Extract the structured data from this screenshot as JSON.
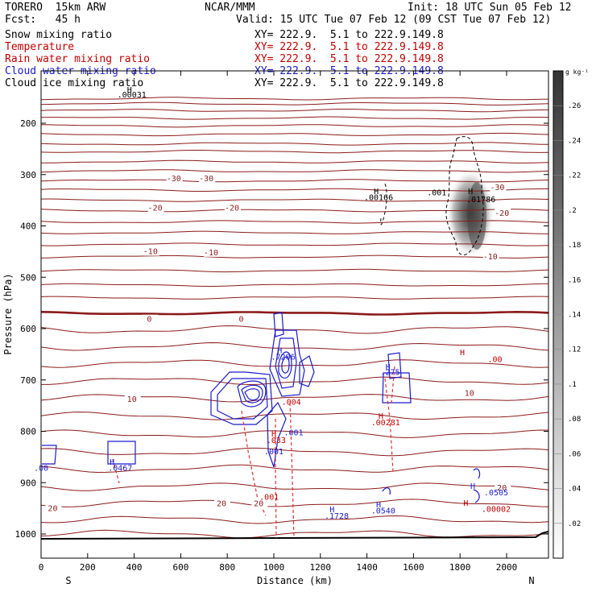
{
  "header": {
    "model": "TORERO  15km ARW",
    "center": "NCAR/MMM",
    "init": "Init: 18 UTC Sun 05 Feb 12",
    "fcst": "Fcst:   45 h",
    "valid": "Valid: 15 UTC Tue 07 Feb 12 (09 CST Tue 07 Feb 12)"
  },
  "fields": [
    {
      "label": "Snow mixing ratio",
      "color": "#000000",
      "xy": "XY= 222.9.  5.1 to 222.9.149.8"
    },
    {
      "label": "Temperature",
      "color": "#c00000",
      "xy": "XY= 222.9.  5.1 to 222.9.149.8"
    },
    {
      "label": "Rain water mixing ratio",
      "color": "#c00000",
      "xy": "XY= 222.9.  5.1 to 222.9.149.8"
    },
    {
      "label": "Cloud water mixing ratio",
      "color": "#1a1acc",
      "xy": "XY= 222.9.  5.1 to 222.9.149.8"
    },
    {
      "label": "Cloud ice mixing ratio",
      "color": "#000000",
      "xy": "XY= 222.9.  5.1 to 222.9.149.8"
    }
  ],
  "chart_data": {
    "type": "contour",
    "xlabel": "Distance (km)",
    "ylabel": "Pressure (hPa)",
    "xlim": [
      0,
      2180
    ],
    "ylim": [
      1050,
      140
    ],
    "xticks": [
      0,
      200,
      400,
      600,
      800,
      1000,
      1200,
      1400,
      1600,
      1800,
      2000
    ],
    "yticks": [
      200,
      300,
      400,
      500,
      600,
      700,
      800,
      900,
      1000
    ],
    "x_end_labels": {
      "left": "S",
      "right": "N"
    },
    "colorbar": {
      "unit": "g kg⁻¹",
      "range": [
        0,
        0.27
      ],
      "ticks": [
        ".02",
        ".04",
        ".06",
        ".08",
        ".1",
        ".12",
        ".14",
        ".16",
        ".18",
        ".2",
        ".22",
        ".24",
        ".26"
      ]
    },
    "temperature_contours": [
      {
        "p": 152,
        "label": ""
      },
      {
        "p": 162,
        "label": ""
      },
      {
        "p": 175,
        "label": ""
      },
      {
        "p": 190,
        "label": ""
      },
      {
        "p": 205,
        "label": ""
      },
      {
        "p": 222,
        "label": ""
      },
      {
        "p": 240,
        "label": ""
      },
      {
        "p": 255,
        "label": ""
      },
      {
        "p": 275,
        "label": ""
      },
      {
        "p": 293,
        "label": "-30"
      },
      {
        "p": 312,
        "label": ""
      },
      {
        "p": 330,
        "label": ""
      },
      {
        "p": 350,
        "label": "-20"
      },
      {
        "p": 370,
        "label": ""
      },
      {
        "p": 392,
        "label": ""
      },
      {
        "p": 413,
        "label": ""
      },
      {
        "p": 436,
        "label": "-10"
      },
      {
        "p": 460,
        "label": ""
      },
      {
        "p": 487,
        "label": ""
      },
      {
        "p": 515,
        "label": ""
      },
      {
        "p": 540,
        "label": ""
      },
      {
        "p": 570,
        "label": "0"
      },
      {
        "p": 602,
        "label": ""
      },
      {
        "p": 635,
        "label": ""
      },
      {
        "p": 668,
        "label": ""
      },
      {
        "p": 702,
        "label": ""
      },
      {
        "p": 735,
        "label": "10"
      },
      {
        "p": 770,
        "label": ""
      },
      {
        "p": 805,
        "label": ""
      },
      {
        "p": 840,
        "label": ""
      },
      {
        "p": 873,
        "label": ""
      },
      {
        "p": 908,
        "label": ""
      },
      {
        "p": 940,
        "label": "20"
      },
      {
        "p": 972,
        "label": ""
      },
      {
        "p": 1000,
        "label": ""
      }
    ],
    "temperature_labels": [
      {
        "x": 570,
        "p": 313,
        "text": "-30"
      },
      {
        "x": 710,
        "p": 313,
        "text": "-30"
      },
      {
        "x": 1960,
        "p": 330,
        "text": "-30"
      },
      {
        "x": 490,
        "p": 370,
        "text": "-20"
      },
      {
        "x": 820,
        "p": 370,
        "text": "-20"
      },
      {
        "x": 1980,
        "p": 380,
        "text": "-20"
      },
      {
        "x": 470,
        "p": 455,
        "text": "-10"
      },
      {
        "x": 730,
        "p": 457,
        "text": "-10"
      },
      {
        "x": 1930,
        "p": 465,
        "text": "-10"
      },
      {
        "x": 465,
        "p": 587,
        "text": "0"
      },
      {
        "x": 860,
        "p": 587,
        "text": "0"
      },
      {
        "x": 390,
        "p": 743,
        "text": "10"
      },
      {
        "x": 1840,
        "p": 731,
        "text": "10"
      },
      {
        "x": 50,
        "p": 955,
        "text": "20"
      },
      {
        "x": 775,
        "p": 946,
        "text": "20"
      },
      {
        "x": 935,
        "p": 946,
        "text": "20"
      },
      {
        "x": 1980,
        "p": 915,
        "text": "20"
      }
    ],
    "annotations": [
      {
        "x": 390,
        "p": 150,
        "text": ".00031",
        "color": "#000000"
      },
      {
        "x": 1450,
        "p": 350,
        "text": ".00166",
        "color": "#000000"
      },
      {
        "x": 1700,
        "p": 340,
        "text": ".001",
        "color": "#000000"
      },
      {
        "x": 1890,
        "p": 354,
        "text": ".01786",
        "color": "#000000"
      },
      {
        "x": 1040,
        "p": 660,
        "text": ".7206",
        "color": "#1a1acc"
      },
      {
        "x": 1500,
        "p": 690,
        "text": ".275",
        "color": "#1a1acc"
      },
      {
        "x": 1950,
        "p": 665,
        "text": ".00",
        "color": "#c00000"
      },
      {
        "x": 1480,
        "p": 788,
        "text": ".00281",
        "color": "#c00000"
      },
      {
        "x": 1075,
        "p": 748,
        "text": ".004",
        "color": "#c00000"
      },
      {
        "x": 1010,
        "p": 823,
        "text": ".033",
        "color": "#c00000"
      },
      {
        "x": 1085,
        "p": 808,
        "text": ".001",
        "color": "#1a1acc"
      },
      {
        "x": 1000,
        "p": 845,
        "text": ".001",
        "color": "#1a1acc"
      },
      {
        "x": 340,
        "p": 877,
        "text": ".0467",
        "color": "#1a1acc"
      },
      {
        "x": 0,
        "p": 877,
        "text": ".00",
        "color": "#1a1acc"
      },
      {
        "x": 1955,
        "p": 925,
        "text": ".0505",
        "color": "#1a1acc"
      },
      {
        "x": 1955,
        "p": 957,
        "text": ".00002",
        "color": "#c00000"
      },
      {
        "x": 1470,
        "p": 960,
        "text": ".0540",
        "color": "#1a1acc"
      },
      {
        "x": 1270,
        "p": 970,
        "text": ".1728",
        "color": "#1a1acc"
      },
      {
        "x": 980,
        "p": 933,
        "text": ".001",
        "color": "#c00000"
      }
    ],
    "h_markers": [
      {
        "x": 380,
        "p": 140,
        "color": "#000000"
      },
      {
        "x": 1440,
        "p": 338,
        "color": "#000000"
      },
      {
        "x": 1845,
        "p": 338,
        "color": "#000000"
      },
      {
        "x": 1025,
        "p": 648,
        "color": "#1a1acc"
      },
      {
        "x": 1490,
        "p": 680,
        "color": "#1a1acc"
      },
      {
        "x": 1810,
        "p": 652,
        "color": "#c00000"
      },
      {
        "x": 1460,
        "p": 776,
        "color": "#c00000"
      },
      {
        "x": 1000,
        "p": 810,
        "color": "#c00000"
      },
      {
        "x": 305,
        "p": 865,
        "color": "#1a1acc"
      },
      {
        "x": 1855,
        "p": 912,
        "color": "#1a1acc"
      },
      {
        "x": 1825,
        "p": 945,
        "color": "#c00000"
      },
      {
        "x": 1450,
        "p": 948,
        "color": "#1a1acc"
      },
      {
        "x": 1250,
        "p": 958,
        "color": "#1a1acc"
      }
    ],
    "snow_max": {
      "x": 1880,
      "p": 365,
      "value": 0.25
    }
  }
}
